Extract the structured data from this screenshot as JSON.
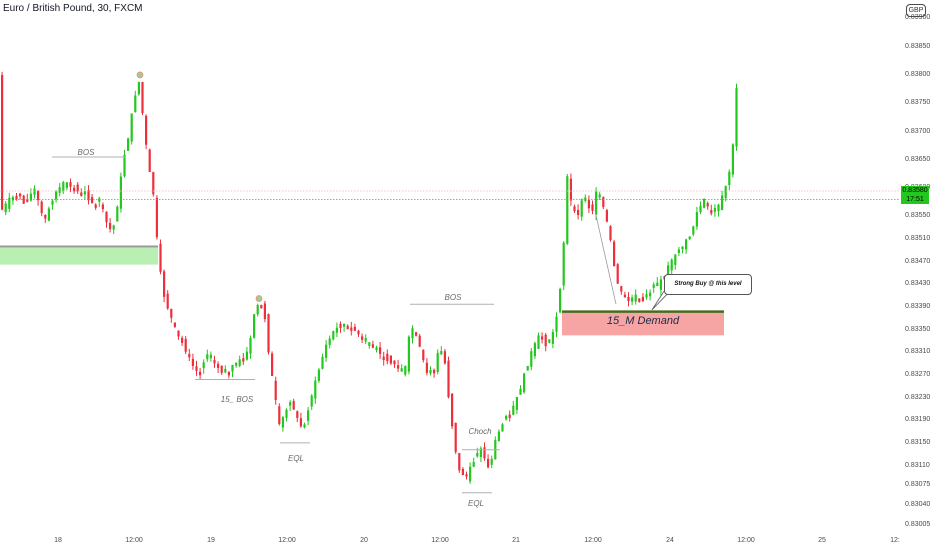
{
  "chart_title": "Euro / British Pound, 30, FXCM",
  "currency_badge": "GBP",
  "price_axis": [
    "0.83900",
    "0.83850",
    "0.83800",
    "0.83750",
    "0.83700",
    "0.83650",
    "0.83600",
    "0.83550",
    "0.83510",
    "0.83470",
    "0.83430",
    "0.83390",
    "0.83350",
    "0.83310",
    "0.83270",
    "0.83230",
    "0.83190",
    "0.83150",
    "0.83110",
    "0.83075",
    "0.83040",
    "0.83005"
  ],
  "time_axis": [
    "18",
    "12:00",
    "19",
    "12:00",
    "20",
    "12:00",
    "21",
    "12:00",
    "24",
    "12:00",
    "25",
    "12:"
  ],
  "current_price": {
    "value": "0.83580",
    "countdown": "17:51"
  },
  "annotations": {
    "bos_left": "BOS",
    "bos_15": "15_ BOS",
    "eql_left": "EQL",
    "bos_right": "BOS",
    "choch": "Choch",
    "eql_right": "EQL",
    "demand_zone": "15_M Demand",
    "callout": "Strong Buy @ this level"
  },
  "colors": {
    "up": "#22c81e",
    "down": "#ee2f3a",
    "demand": "#f7a4a4",
    "supply": "#b9efb3",
    "price_line": "#f05a5a"
  },
  "chart_data": {
    "type": "candlestick",
    "symbol": "EUR/GBP",
    "timeframe": "30",
    "source": "FXCM",
    "y_range": [
      0.83,
      0.8392
    ],
    "current": 0.8358,
    "path_points": [
      [
        0,
        0.83555
      ],
      [
        10,
        0.8358
      ],
      [
        20,
        0.8359
      ],
      [
        25,
        0.8357
      ],
      [
        35,
        0.836
      ],
      [
        45,
        0.8354
      ],
      [
        55,
        0.8359
      ],
      [
        65,
        0.8361
      ],
      [
        75,
        0.836
      ],
      [
        85,
        0.8359
      ],
      [
        95,
        0.8357
      ],
      [
        100,
        0.8358
      ],
      [
        107,
        0.8354
      ],
      [
        113,
        0.8352
      ],
      [
        118,
        0.8357
      ],
      [
        124,
        0.8365
      ],
      [
        130,
        0.837
      ],
      [
        135,
        0.8376
      ],
      [
        140,
        0.8379
      ],
      [
        145,
        0.837
      ],
      [
        150,
        0.8363
      ],
      [
        155,
        0.8358
      ],
      [
        158,
        0.835
      ],
      [
        163,
        0.8342
      ],
      [
        170,
        0.8338
      ],
      [
        178,
        0.8334
      ],
      [
        185,
        0.8332
      ],
      [
        192,
        0.8329
      ],
      [
        200,
        0.8327
      ],
      [
        207,
        0.8331
      ],
      [
        215,
        0.8329
      ],
      [
        225,
        0.8327
      ],
      [
        235,
        0.8329
      ],
      [
        245,
        0.833
      ],
      [
        250,
        0.8332
      ],
      [
        255,
        0.8338
      ],
      [
        260,
        0.834
      ],
      [
        265,
        0.8338
      ],
      [
        270,
        0.833
      ],
      [
        275,
        0.8324
      ],
      [
        280,
        0.8318
      ],
      [
        285,
        0.832
      ],
      [
        290,
        0.8322
      ],
      [
        295,
        0.8321
      ],
      [
        300,
        0.8318
      ],
      [
        305,
        0.8318
      ],
      [
        310,
        0.8322
      ],
      [
        318,
        0.8327
      ],
      [
        326,
        0.8332
      ],
      [
        335,
        0.8335
      ],
      [
        345,
        0.8336
      ],
      [
        355,
        0.8335
      ],
      [
        365,
        0.8333
      ],
      [
        375,
        0.8332
      ],
      [
        385,
        0.833
      ],
      [
        395,
        0.8329
      ],
      [
        405,
        0.8327
      ],
      [
        410,
        0.8334
      ],
      [
        415,
        0.8336
      ],
      [
        420,
        0.8332
      ],
      [
        428,
        0.8327
      ],
      [
        435,
        0.8328
      ],
      [
        440,
        0.8332
      ],
      [
        445,
        0.833
      ],
      [
        450,
        0.8322
      ],
      [
        455,
        0.8315
      ],
      [
        460,
        0.831
      ],
      [
        467,
        0.8309
      ],
      [
        475,
        0.8312
      ],
      [
        482,
        0.8314
      ],
      [
        490,
        0.831
      ],
      [
        495,
        0.8315
      ],
      [
        502,
        0.8318
      ],
      [
        510,
        0.832
      ],
      [
        518,
        0.8323
      ],
      [
        525,
        0.8327
      ],
      [
        532,
        0.8331
      ],
      [
        540,
        0.8334
      ],
      [
        548,
        0.8332
      ],
      [
        553,
        0.8334
      ],
      [
        558,
        0.8338
      ],
      [
        563,
        0.8346
      ],
      [
        568,
        0.8362
      ],
      [
        573,
        0.8356
      ],
      [
        578,
        0.8355
      ],
      [
        583,
        0.8358
      ],
      [
        588,
        0.8357
      ],
      [
        593,
        0.8356
      ],
      [
        598,
        0.836
      ],
      [
        605,
        0.8356
      ],
      [
        610,
        0.8352
      ],
      [
        615,
        0.8346
      ],
      [
        620,
        0.8342
      ],
      [
        628,
        0.834
      ],
      [
        636,
        0.8341
      ],
      [
        645,
        0.834
      ],
      [
        652,
        0.8342
      ],
      [
        660,
        0.8343
      ],
      [
        668,
        0.8346
      ],
      [
        676,
        0.8348
      ],
      [
        684,
        0.835
      ],
      [
        692,
        0.8352
      ],
      [
        698,
        0.8356
      ],
      [
        705,
        0.8358
      ],
      [
        712,
        0.8356
      ],
      [
        720,
        0.8357
      ],
      [
        726,
        0.836
      ],
      [
        730,
        0.8363
      ],
      [
        734,
        0.8368
      ],
      [
        738,
        0.838
      ]
    ]
  }
}
